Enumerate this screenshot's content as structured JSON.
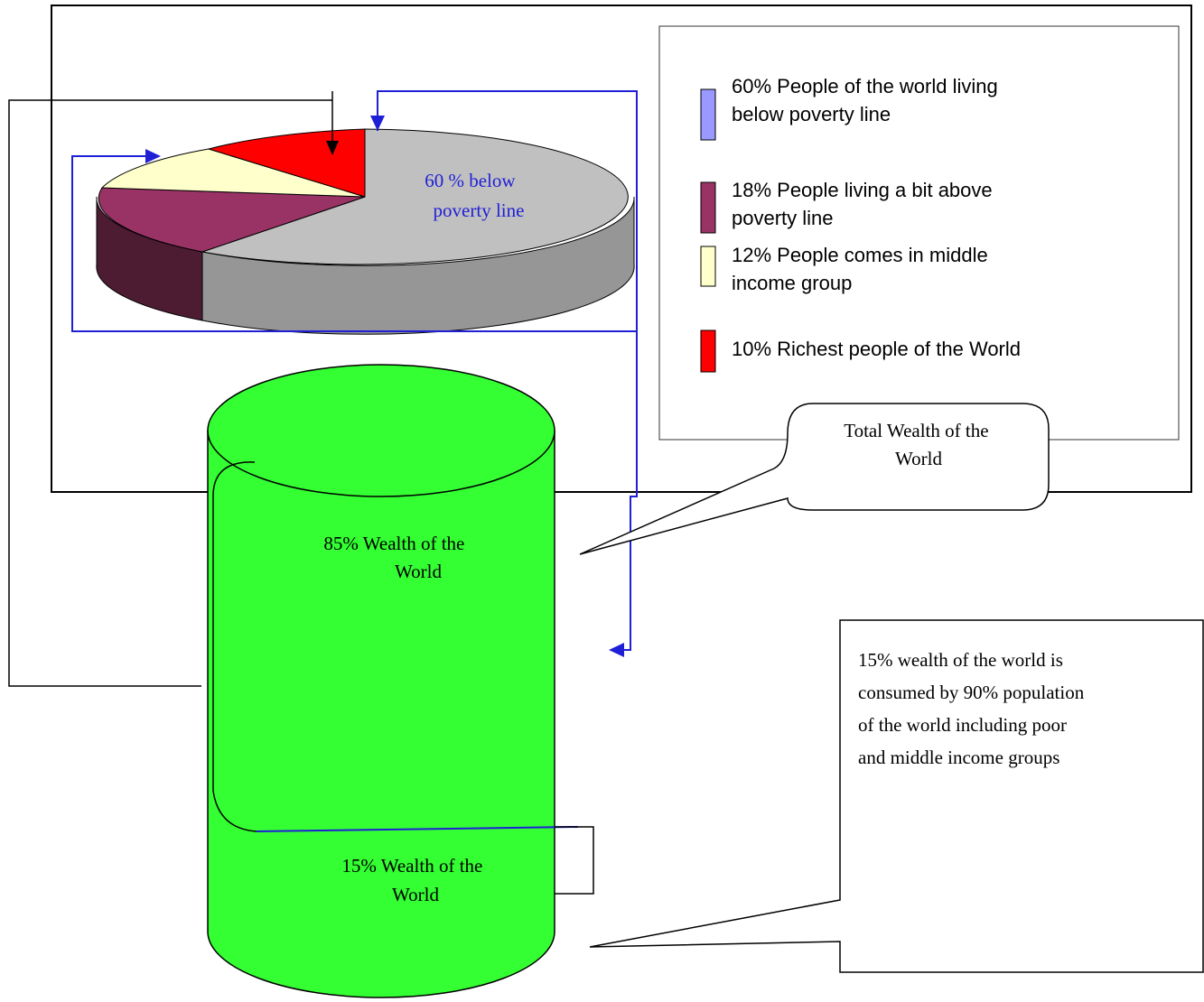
{
  "chart_data": {
    "type": "pie",
    "slices": [
      {
        "name": "60% People of the world living below poverty line",
        "value": 60,
        "color": "#c0c0c0",
        "legend_color": "#9999ff"
      },
      {
        "name": "18% People living a bit above poverty line",
        "value": 18,
        "color": "#993366",
        "legend_color": "#993366"
      },
      {
        "name": "12% People comes in middle income group",
        "value": 12,
        "color": "#ffffcc",
        "legend_color": "#ffffcc"
      },
      {
        "name": "10% Richest people of the World",
        "value": 10,
        "color": "#ff0000",
        "legend_color": "#ff0000"
      }
    ],
    "legend": {
      "position": "right",
      "lines": [
        [
          "60% People of the world living",
          "below poverty line"
        ],
        [
          "18% People living a bit above",
          "poverty line"
        ],
        [
          "12% People comes in middle",
          "income group"
        ],
        [
          "10% Richest people of the World"
        ]
      ]
    },
    "pie_label": [
      "60 % below",
      "poverty line"
    ]
  },
  "cylinder": {
    "top_label": [
      "85% Wealth of the",
      "World"
    ],
    "bottom_label": [
      "15% Wealth of the",
      "World"
    ],
    "color": "#33ff33"
  },
  "callouts": {
    "total": [
      "Total Wealth of the",
      "World"
    ],
    "note": [
      "15% wealth of the world is",
      "consumed by 90% population",
      "of the world including poor",
      "and middle income groups"
    ]
  },
  "colors": {
    "arrow_blue": "#1f1fd6",
    "line": "#000000"
  }
}
